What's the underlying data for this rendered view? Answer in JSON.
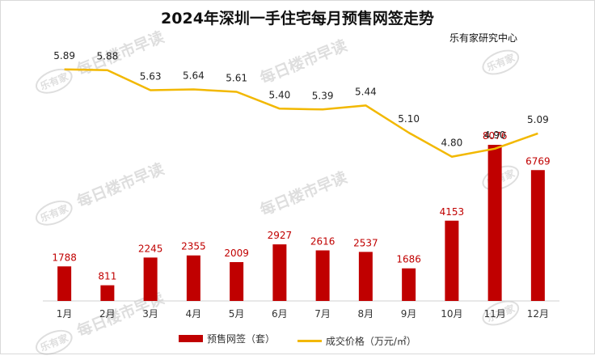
{
  "title": "2024年深圳一手住宅每月预售网签走势",
  "source": "乐有家研究中心",
  "watermark_text": "每日楼市早读",
  "watermark_logo": "乐有家",
  "chart_data": {
    "type": "bar+line",
    "categories": [
      "1月",
      "2月",
      "3月",
      "4月",
      "5月",
      "6月",
      "7月",
      "8月",
      "9月",
      "10月",
      "11月",
      "12月"
    ],
    "series": [
      {
        "name": "预售网签（套）",
        "type": "bar",
        "color": "#c00000",
        "label_color": "#c00000",
        "values": [
          1788,
          811,
          2245,
          2355,
          2009,
          2927,
          2616,
          2537,
          1686,
          4153,
          8076,
          6769
        ]
      },
      {
        "name": "成交价格（万元/㎡）",
        "type": "line",
        "color": "#f2b800",
        "label_color": "#222222",
        "values": [
          5.89,
          5.88,
          5.63,
          5.64,
          5.61,
          5.4,
          5.39,
          5.44,
          5.1,
          4.8,
          4.9,
          5.09
        ],
        "labels": [
          "5.89",
          "5.88",
          "5.63",
          "5.64",
          "5.61",
          "5.40",
          "5.39",
          "5.44",
          "5.10",
          "4.80",
          "4.90",
          "5.09"
        ]
      }
    ],
    "bar_axis_max": 9500,
    "line_axis_range": [
      3.0,
      6.15
    ],
    "gridlines": false,
    "legend_position": "bottom"
  }
}
